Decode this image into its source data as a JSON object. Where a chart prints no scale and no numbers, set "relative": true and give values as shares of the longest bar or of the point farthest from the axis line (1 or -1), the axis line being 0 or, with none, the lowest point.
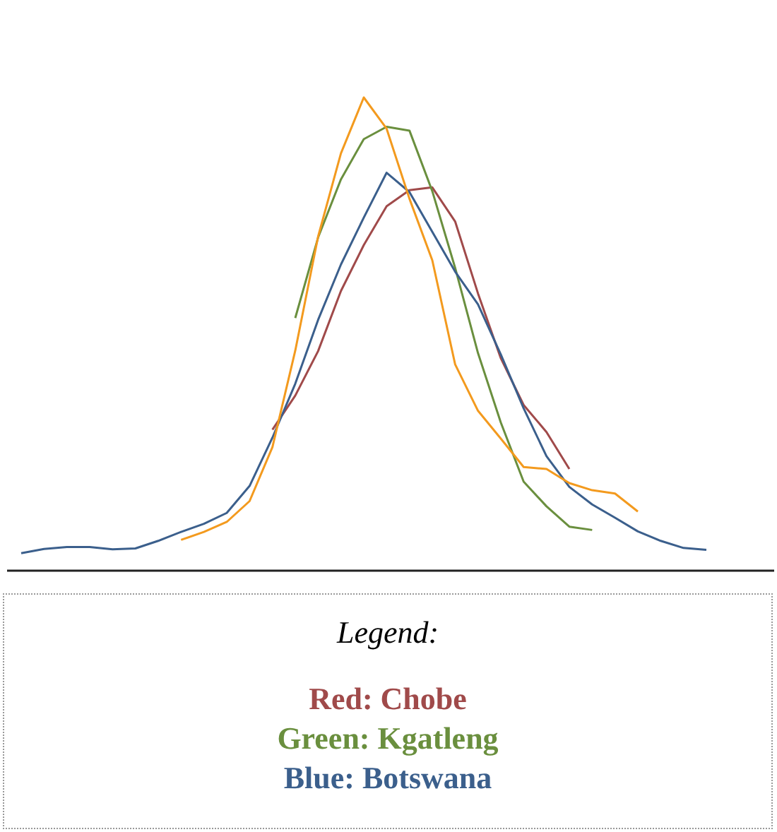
{
  "chart_data": {
    "type": "line",
    "relative": true,
    "legend_title": "Legend:",
    "marker": "none",
    "line_style": "solid",
    "categories": [
      null,
      null,
      null,
      null,
      null,
      null,
      null,
      null,
      null,
      null,
      null,
      null,
      null,
      null,
      null,
      null,
      null,
      null,
      null,
      null,
      null,
      null,
      null,
      null,
      null,
      null,
      null,
      null,
      null,
      null,
      null
    ],
    "series": [
      {
        "name": "Red: Chobe",
        "color": "#a04a4a",
        "values": [
          null,
          null,
          null,
          null,
          null,
          null,
          null,
          null,
          null,
          null,
          null,
          0.298,
          0.37,
          0.464,
          0.591,
          0.688,
          0.77,
          0.804,
          0.81,
          0.738,
          0.586,
          0.449,
          0.35,
          0.293,
          0.215,
          null,
          null,
          null,
          null,
          null,
          null
        ]
      },
      {
        "name": "Green: Kgatleng",
        "color": "#6a8f3e",
        "values": [
          null,
          null,
          null,
          null,
          null,
          null,
          null,
          null,
          null,
          null,
          null,
          null,
          0.534,
          0.704,
          0.827,
          0.912,
          0.938,
          0.93,
          0.802,
          0.64,
          0.46,
          0.313,
          0.188,
          0.136,
          0.093,
          0.086,
          null,
          null,
          null,
          null,
          null
        ]
      },
      {
        "name": "Blue: Botswana",
        "color": "#3b5f8c",
        "values": [
          0.037,
          0.046,
          0.05,
          0.05,
          0.045,
          0.047,
          0.063,
          0.082,
          0.099,
          0.122,
          0.179,
          0.281,
          0.395,
          0.53,
          0.647,
          0.746,
          0.841,
          0.8,
          0.716,
          0.632,
          0.563,
          0.457,
          0.343,
          0.242,
          0.177,
          0.14,
          0.112,
          0.083,
          0.063,
          0.048,
          0.044
        ]
      },
      {
        "color": "#f39a1e",
        "values": [
          null,
          null,
          null,
          null,
          null,
          null,
          null,
          0.065,
          0.082,
          0.103,
          0.147,
          0.261,
          0.465,
          0.706,
          0.882,
          1,
          0.934,
          0.786,
          0.656,
          0.436,
          0.338,
          0.279,
          0.219,
          0.215,
          0.185,
          0.17,
          0.163,
          0.125,
          null,
          null,
          null
        ]
      }
    ]
  }
}
